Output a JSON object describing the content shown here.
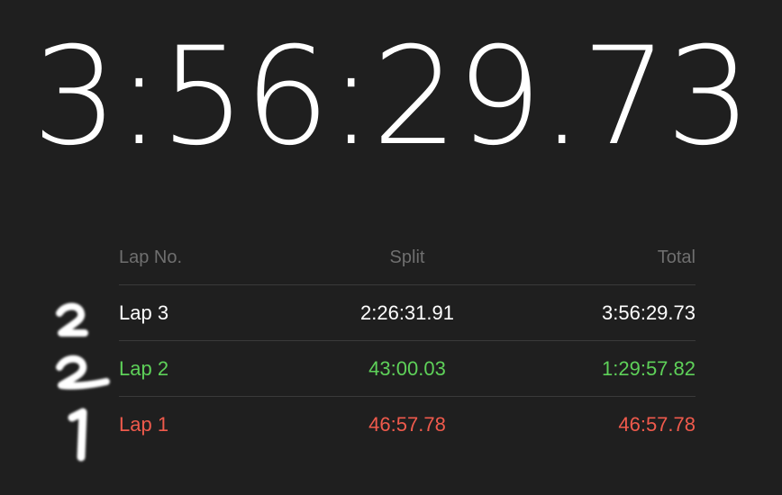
{
  "stopwatch": {
    "elapsed": "3:56:29.73"
  },
  "lap_table": {
    "headers": {
      "lap": "Lap No.",
      "split": "Split",
      "total": "Total"
    },
    "rows": [
      {
        "lap": "Lap 3",
        "split": "2:26:31.91",
        "total": "3:56:29.73",
        "color": "#ffffff"
      },
      {
        "lap": "Lap 2",
        "split": "43:00.03",
        "total": "1:29:57.82",
        "color": "#5ed159"
      },
      {
        "lap": "Lap 1",
        "split": "46:57.78",
        "total": "46:57.78",
        "color": "#ef5a4c"
      }
    ]
  },
  "handwritten_annotations": [
    "2",
    "2",
    "1"
  ],
  "colors": {
    "background": "#1f1f1f",
    "fastest_lap": "#5ed159",
    "slowest_lap": "#ef5a4c",
    "current_lap": "#ffffff",
    "header_text": "#6f6f6f"
  }
}
